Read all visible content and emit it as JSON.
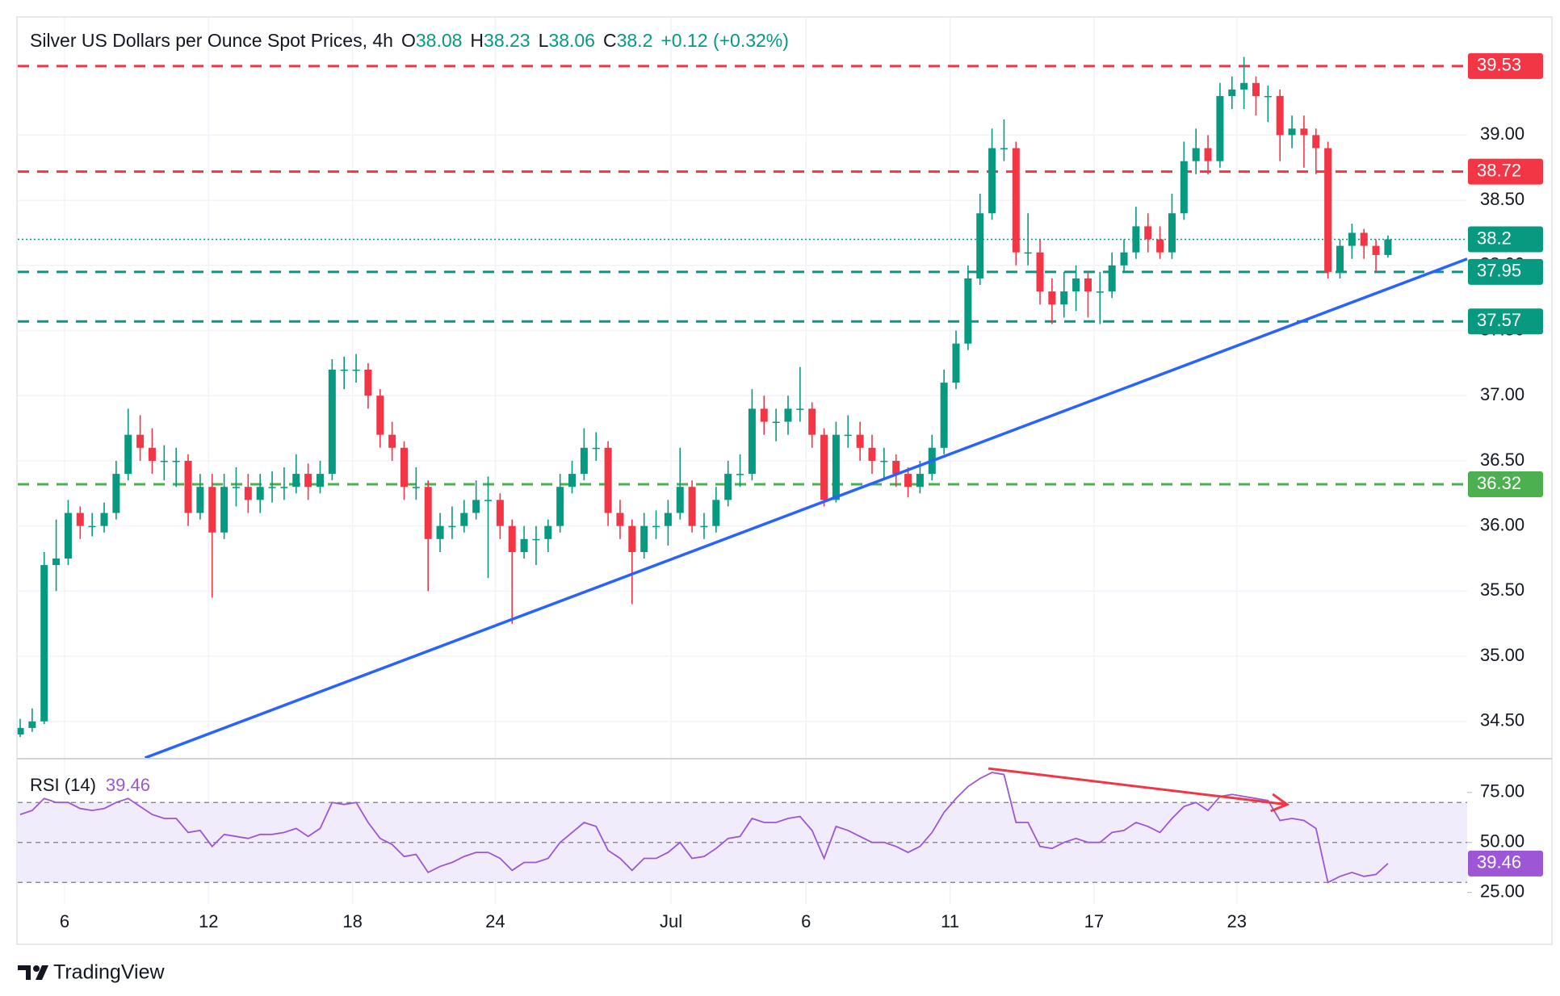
{
  "chart_data": {
    "type": "candlestick",
    "title": "Silver US Dollars per Ounce Spot Prices, 4h",
    "ohlc_prefixes": [
      "O",
      "H",
      "L",
      "C"
    ],
    "change": "+0.12 (+0.32%)",
    "up_color": "#089981",
    "down_color": "#f23645",
    "candles": [
      [
        34.4,
        34.52,
        34.38,
        34.45
      ],
      [
        34.45,
        34.6,
        34.42,
        34.5
      ],
      [
        34.5,
        35.8,
        34.48,
        35.7
      ],
      [
        35.7,
        36.05,
        35.5,
        35.75
      ],
      [
        35.75,
        36.2,
        35.7,
        36.1
      ],
      [
        36.1,
        36.15,
        35.9,
        36.0
      ],
      [
        36.0,
        36.1,
        35.92,
        36.0
      ],
      [
        36.0,
        36.18,
        35.95,
        36.1
      ],
      [
        36.1,
        36.5,
        36.05,
        36.4
      ],
      [
        36.4,
        36.9,
        36.35,
        36.7
      ],
      [
        36.7,
        36.85,
        36.5,
        36.6
      ],
      [
        36.6,
        36.75,
        36.4,
        36.5
      ],
      [
        36.5,
        36.62,
        36.35,
        36.5
      ],
      [
        36.5,
        36.6,
        36.3,
        36.5
      ],
      [
        36.5,
        36.55,
        36.0,
        36.1
      ],
      [
        36.1,
        36.4,
        36.05,
        36.3
      ],
      [
        36.3,
        36.4,
        35.45,
        35.95
      ],
      [
        35.95,
        36.4,
        35.9,
        36.3
      ],
      [
        36.3,
        36.45,
        36.15,
        36.3
      ],
      [
        36.3,
        36.4,
        36.1,
        36.2
      ],
      [
        36.2,
        36.4,
        36.1,
        36.3
      ],
      [
        36.3,
        36.42,
        36.18,
        36.3
      ],
      [
        36.3,
        36.45,
        36.2,
        36.3
      ],
      [
        36.3,
        36.55,
        36.25,
        36.4
      ],
      [
        36.4,
        36.48,
        36.2,
        36.3
      ],
      [
        36.3,
        36.5,
        36.25,
        36.4
      ],
      [
        36.4,
        37.28,
        36.35,
        37.2
      ],
      [
        37.2,
        37.3,
        37.05,
        37.2
      ],
      [
        37.2,
        37.32,
        37.1,
        37.2
      ],
      [
        37.2,
        37.25,
        36.9,
        37.0
      ],
      [
        37.0,
        37.05,
        36.6,
        36.7
      ],
      [
        36.7,
        36.8,
        36.5,
        36.6
      ],
      [
        36.6,
        36.65,
        36.2,
        36.3
      ],
      [
        36.3,
        36.45,
        36.2,
        36.3
      ],
      [
        36.3,
        36.35,
        35.5,
        35.9
      ],
      [
        35.9,
        36.1,
        35.8,
        36.0
      ],
      [
        36.0,
        36.15,
        35.9,
        36.0
      ],
      [
        36.0,
        36.2,
        35.95,
        36.1
      ],
      [
        36.1,
        36.35,
        36.05,
        36.2
      ],
      [
        36.2,
        36.38,
        35.6,
        36.2
      ],
      [
        36.2,
        36.25,
        35.9,
        36.0
      ],
      [
        36.0,
        36.05,
        35.25,
        35.8
      ],
      [
        35.8,
        36.0,
        35.75,
        35.9
      ],
      [
        35.9,
        36.0,
        35.7,
        35.9
      ],
      [
        35.9,
        36.05,
        35.8,
        36.0
      ],
      [
        36.0,
        36.4,
        35.95,
        36.3
      ],
      [
        36.3,
        36.5,
        36.25,
        36.4
      ],
      [
        36.4,
        36.75,
        36.35,
        36.6
      ],
      [
        36.6,
        36.72,
        36.5,
        36.6
      ],
      [
        36.6,
        36.65,
        36.0,
        36.1
      ],
      [
        36.1,
        36.2,
        35.9,
        36.0
      ],
      [
        36.0,
        36.05,
        35.4,
        35.8
      ],
      [
        35.8,
        36.1,
        35.75,
        36.0
      ],
      [
        36.0,
        36.12,
        35.9,
        36.0
      ],
      [
        36.0,
        36.2,
        35.85,
        36.1
      ],
      [
        36.1,
        36.6,
        36.05,
        36.3
      ],
      [
        36.3,
        36.35,
        35.95,
        36.0
      ],
      [
        36.0,
        36.1,
        35.9,
        36.0
      ],
      [
        36.0,
        36.3,
        35.95,
        36.2
      ],
      [
        36.2,
        36.5,
        36.15,
        36.4
      ],
      [
        36.4,
        36.55,
        36.3,
        36.4
      ],
      [
        36.4,
        37.05,
        36.35,
        36.9
      ],
      [
        36.9,
        37.0,
        36.7,
        36.8
      ],
      [
        36.8,
        36.9,
        36.65,
        36.8
      ],
      [
        36.8,
        37.0,
        36.7,
        36.9
      ],
      [
        36.9,
        37.22,
        36.8,
        36.9
      ],
      [
        36.9,
        36.95,
        36.6,
        36.7
      ],
      [
        36.7,
        36.75,
        36.15,
        36.2
      ],
      [
        36.2,
        36.8,
        36.18,
        36.7
      ],
      [
        36.7,
        36.85,
        36.6,
        36.7
      ],
      [
        36.7,
        36.8,
        36.5,
        36.6
      ],
      [
        36.6,
        36.7,
        36.4,
        36.5
      ],
      [
        36.5,
        36.6,
        36.35,
        36.5
      ],
      [
        36.5,
        36.55,
        36.3,
        36.4
      ],
      [
        36.4,
        36.45,
        36.22,
        36.3
      ],
      [
        36.3,
        36.5,
        36.25,
        36.4
      ],
      [
        36.4,
        36.7,
        36.35,
        36.6
      ],
      [
        36.6,
        37.2,
        36.55,
        37.1
      ],
      [
        37.1,
        37.5,
        37.05,
        37.4
      ],
      [
        37.4,
        38.0,
        37.35,
        37.9
      ],
      [
        37.9,
        38.55,
        37.85,
        38.4
      ],
      [
        38.4,
        39.05,
        38.35,
        38.9
      ],
      [
        38.9,
        39.12,
        38.8,
        38.9
      ],
      [
        38.9,
        38.95,
        38.0,
        38.1
      ],
      [
        38.1,
        38.4,
        38.0,
        38.1
      ],
      [
        38.1,
        38.2,
        37.7,
        37.8
      ],
      [
        37.8,
        37.9,
        37.55,
        37.7
      ],
      [
        37.7,
        37.95,
        37.6,
        37.8
      ],
      [
        37.8,
        38.0,
        37.65,
        37.9
      ],
      [
        37.9,
        37.95,
        37.6,
        37.8
      ],
      [
        37.8,
        37.95,
        37.55,
        37.8
      ],
      [
        37.8,
        38.1,
        37.75,
        38.0
      ],
      [
        38.0,
        38.2,
        37.95,
        38.1
      ],
      [
        38.1,
        38.45,
        38.05,
        38.3
      ],
      [
        38.3,
        38.4,
        38.1,
        38.2
      ],
      [
        38.2,
        38.3,
        38.05,
        38.1
      ],
      [
        38.1,
        38.55,
        38.05,
        38.4
      ],
      [
        38.4,
        38.95,
        38.35,
        38.8
      ],
      [
        38.8,
        39.05,
        38.7,
        38.9
      ],
      [
        38.9,
        39.0,
        38.7,
        38.8
      ],
      [
        38.8,
        39.4,
        38.75,
        39.3
      ],
      [
        39.3,
        39.45,
        39.2,
        39.35
      ],
      [
        39.35,
        39.6,
        39.2,
        39.4
      ],
      [
        39.4,
        39.45,
        39.15,
        39.3
      ],
      [
        39.3,
        39.38,
        39.1,
        39.3
      ],
      [
        39.3,
        39.35,
        38.8,
        39.0
      ],
      [
        39.0,
        39.15,
        38.9,
        39.05
      ],
      [
        39.05,
        39.15,
        38.75,
        39.0
      ],
      [
        39.0,
        39.05,
        38.7,
        38.9
      ],
      [
        38.9,
        38.95,
        37.9,
        37.95
      ],
      [
        37.95,
        38.2,
        37.9,
        38.15
      ],
      [
        38.15,
        38.32,
        38.05,
        38.25
      ],
      [
        38.25,
        38.28,
        38.05,
        38.15
      ],
      [
        38.15,
        38.2,
        37.95,
        38.08
      ],
      [
        38.08,
        38.23,
        38.06,
        38.2
      ]
    ],
    "xlim": [
      0,
      120.6
    ],
    "xticks": [
      {
        "value": 3.7,
        "label": "6"
      },
      {
        "value": 15.7,
        "label": "12"
      },
      {
        "value": 27.7,
        "label": "18"
      },
      {
        "value": 39.6,
        "label": "24"
      },
      {
        "value": 54.25,
        "label": "Jul"
      },
      {
        "value": 65.5,
        "label": "6"
      },
      {
        "value": 77.5,
        "label": "11"
      },
      {
        "value": 89.5,
        "label": "17"
      },
      {
        "value": 101.4,
        "label": "23"
      }
    ],
    "ylim": [
      34.22,
      39.69
    ],
    "yticks": [
      {
        "value": 39,
        "label": "39.00"
      },
      {
        "value": 38.5,
        "label": "38.50"
      },
      {
        "value": 38,
        "label": "38.00"
      },
      {
        "value": 37.5,
        "label": "37.50"
      },
      {
        "value": 37,
        "label": "37.00"
      },
      {
        "value": 36.5,
        "label": "36.50"
      },
      {
        "value": 36,
        "label": "36.00"
      },
      {
        "value": 35.5,
        "label": "35.50"
      },
      {
        "value": 35,
        "label": "35.00"
      },
      {
        "value": 34.5,
        "label": "34.50"
      }
    ],
    "grid": true,
    "price_line_color": "#089981",
    "levels": [
      {
        "value": 39.53,
        "color": "#f23645"
      },
      {
        "value": 38.72,
        "color": "#f23645"
      },
      {
        "value": 37.95,
        "color": "#089981"
      },
      {
        "value": 37.57,
        "color": "#089981"
      },
      {
        "value": 36.32,
        "color": "#4caf50"
      }
    ],
    "trendline": {
      "x": [
        10.4,
        120.6
      ],
      "y": [
        34.22,
        38.05
      ],
      "color": "#2962ff"
    },
    "rsi": {
      "name": "RSI (14)",
      "color": "#9c56d6",
      "fill": "#f1ecfb",
      "ylim": [
        -1,
        91.5
      ],
      "yticks": [
        {
          "value": 75,
          "label": "75.00"
        },
        {
          "value": 50,
          "label": "50.00"
        },
        {
          "value": 25,
          "label": "25.00"
        }
      ],
      "bands": [
        70,
        50,
        30
      ],
      "values": [
        64,
        66,
        72,
        70,
        70,
        67,
        66,
        67,
        70,
        72,
        68,
        64,
        62,
        62,
        55,
        56,
        48,
        54,
        53,
        52,
        54,
        54,
        55,
        57,
        53,
        57,
        70,
        69,
        70,
        60,
        52,
        49,
        43,
        44,
        35,
        38,
        40,
        43,
        45,
        45,
        42,
        36,
        40,
        40,
        42,
        50,
        55,
        60,
        58,
        46,
        42,
        36,
        42,
        42,
        45,
        50,
        42,
        43,
        47,
        52,
        53,
        62,
        60,
        60,
        62,
        63,
        56,
        42,
        58,
        56,
        53,
        50,
        50,
        48,
        45,
        48,
        55,
        65,
        72,
        78,
        82,
        85,
        84,
        60,
        60,
        48,
        47,
        50,
        52,
        50,
        50,
        55,
        56,
        60,
        58,
        55,
        62,
        68,
        70,
        66,
        73,
        74,
        73,
        72,
        71,
        61,
        62,
        61,
        57,
        30,
        33,
        35,
        33,
        34,
        39.46
      ],
      "divergence": {
        "x": [
          80.7,
          105.6
        ],
        "y": [
          87,
          69
        ],
        "color": "#f23645"
      }
    }
  },
  "brand": "TradingView"
}
